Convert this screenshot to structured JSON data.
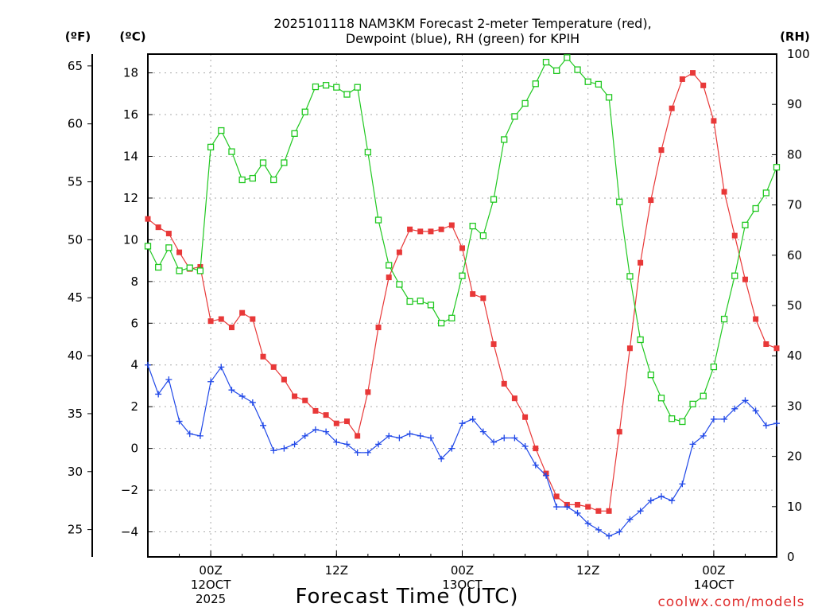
{
  "chart_data": {
    "type": "line",
    "title": "2025101118 NAM3KM Forecast 2-meter Temperature (red),",
    "title_line2": "Dewpoint (blue), RH (green) for KPIH",
    "xlabel": "Forecast Time (UTC)",
    "credit": "coolwx.com/models",
    "unit_labels": {
      "fahrenheit": "(ºF)",
      "celsius": "(ºC)",
      "rh": "(RH)"
    },
    "x_range_hours": [
      -6,
      54
    ],
    "x_ticks": [
      {
        "hour": 0,
        "lines": [
          "00Z",
          "12OCT",
          "2025"
        ]
      },
      {
        "hour": 12,
        "lines": [
          "12Z"
        ]
      },
      {
        "hour": 24,
        "lines": [
          "00Z",
          "13OCT"
        ]
      },
      {
        "hour": 36,
        "lines": [
          "12Z"
        ]
      },
      {
        "hour": 48,
        "lines": [
          "00Z",
          "14OCT"
        ]
      }
    ],
    "celsius_axis": {
      "min": -5.2,
      "max": 18.9,
      "ticks": [
        -4,
        -2,
        0,
        2,
        4,
        6,
        8,
        10,
        12,
        14,
        16,
        18
      ]
    },
    "fahrenheit_axis": {
      "ticks": [
        25,
        30,
        35,
        40,
        45,
        50,
        55,
        60,
        65
      ]
    },
    "rh_axis": {
      "min": 0,
      "max": 100,
      "ticks": [
        0,
        10,
        20,
        30,
        40,
        50,
        60,
        70,
        80,
        90,
        100
      ]
    },
    "x_hours": [
      -6,
      -5,
      -4,
      -3,
      -2,
      -1,
      0,
      1,
      2,
      3,
      4,
      5,
      6,
      7,
      8,
      9,
      10,
      11,
      12,
      13,
      14,
      15,
      16,
      17,
      18,
      19,
      20,
      21,
      22,
      23,
      24,
      25,
      26,
      27,
      28,
      29,
      30,
      31,
      32,
      33,
      34,
      35,
      36,
      37,
      38,
      39,
      40,
      41,
      42,
      43,
      44,
      45,
      46,
      47,
      48,
      49,
      50,
      51,
      52,
      53,
      54
    ],
    "series": [
      {
        "name": "2-meter Temperature",
        "unit": "°C",
        "axis": "celsius",
        "color": "#e83838",
        "marker": "filled-square",
        "values": [
          11.0,
          10.6,
          10.3,
          9.4,
          8.6,
          8.7,
          6.1,
          6.2,
          5.8,
          6.5,
          6.2,
          4.4,
          3.9,
          3.3,
          2.5,
          2.3,
          1.8,
          1.6,
          1.2,
          1.3,
          0.6,
          2.7,
          5.8,
          8.2,
          9.4,
          10.5,
          10.4,
          10.4,
          10.5,
          10.7,
          9.6,
          7.4,
          7.2,
          5.0,
          3.1,
          2.4,
          1.5,
          0.0,
          -1.2,
          -2.3,
          -2.7,
          -2.7,
          -2.8,
          -3.0,
          -3.0,
          0.8,
          4.8,
          8.9,
          11.9,
          14.3,
          16.3,
          17.7,
          18.0,
          17.4,
          15.7,
          12.3,
          10.2,
          8.1,
          6.2,
          5.0,
          4.8
        ]
      },
      {
        "name": "Dewpoint",
        "unit": "°C",
        "axis": "celsius",
        "color": "#2048e8",
        "marker": "plus",
        "values": [
          4.0,
          2.6,
          3.3,
          1.3,
          0.7,
          0.6,
          3.2,
          3.9,
          2.8,
          2.5,
          2.2,
          1.1,
          -0.1,
          0.0,
          0.2,
          0.6,
          0.9,
          0.8,
          0.3,
          0.2,
          -0.2,
          -0.2,
          0.2,
          0.6,
          0.5,
          0.7,
          0.6,
          0.5,
          -0.5,
          0.0,
          1.2,
          1.4,
          0.8,
          0.3,
          0.5,
          0.5,
          0.1,
          -0.8,
          -1.3,
          -2.8,
          -2.8,
          -3.1,
          -3.6,
          -3.9,
          -4.2,
          -4.0,
          -3.4,
          -3.0,
          -2.5,
          -2.3,
          -2.5,
          -1.7,
          0.2,
          0.6,
          1.4,
          1.4,
          1.9,
          2.3,
          1.8,
          1.1,
          1.2
        ]
      },
      {
        "name": "RH",
        "unit": "%",
        "axis": "rh",
        "color": "#20c820",
        "marker": "open-square",
        "values": [
          61.8,
          57.6,
          61.5,
          56.9,
          57.5,
          56.9,
          81.5,
          84.8,
          80.6,
          75.0,
          75.3,
          78.4,
          75.0,
          78.4,
          84.2,
          88.5,
          93.5,
          93.8,
          93.4,
          92.0,
          93.4,
          80.5,
          67.0,
          58.0,
          54.2,
          50.8,
          50.9,
          50.1,
          46.5,
          47.5,
          55.9,
          65.8,
          63.9,
          71.1,
          83.0,
          87.6,
          90.2,
          94.1,
          98.4,
          96.7,
          99.3,
          96.9,
          94.5,
          94.0,
          91.4,
          70.6,
          55.8,
          43.2,
          36.2,
          31.6,
          27.5,
          26.9,
          30.4,
          32.0,
          37.8,
          47.3,
          55.9,
          66.0,
          69.3,
          72.4,
          77.5
        ]
      }
    ]
  }
}
